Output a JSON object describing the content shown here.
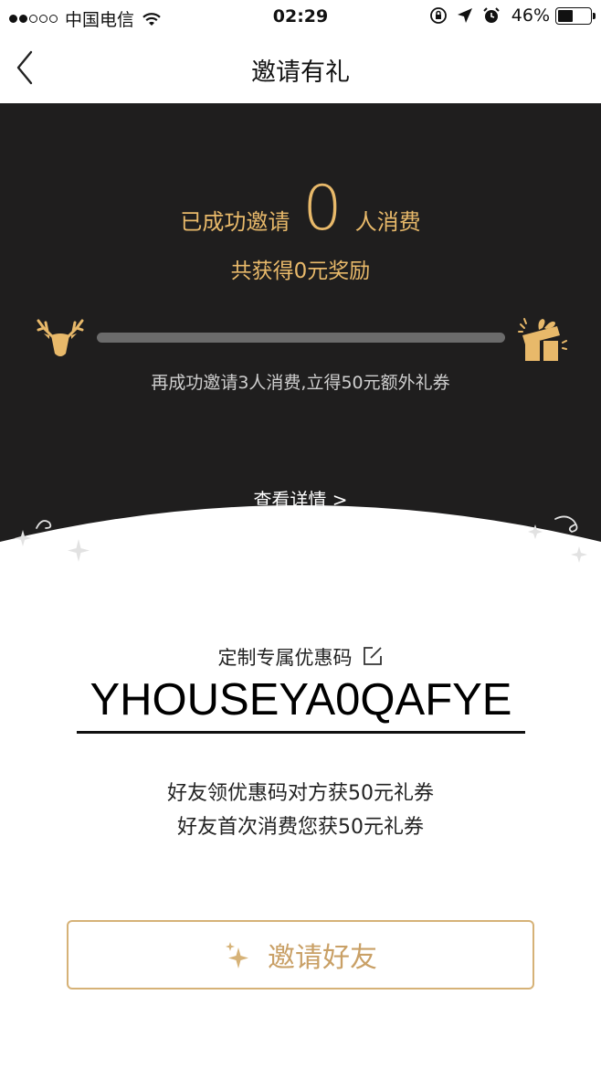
{
  "status_bar": {
    "carrier": "中国电信",
    "time": "02:29",
    "battery_percent": "46%",
    "battery_level": 0.46,
    "signal_bars_filled": 2,
    "signal_bars_total": 5
  },
  "nav": {
    "title": "邀请有礼"
  },
  "hero": {
    "stats_prefix": "已成功邀请",
    "invited_count": "0",
    "stats_suffix": "人消费",
    "reward_text": "共获得0元奖励",
    "progress_fraction": 0,
    "progress_hint": "再成功邀请3人消费,立得50元额外礼券",
    "details_link": "查看详情 >"
  },
  "code_section": {
    "label": "定制专属优惠码",
    "promo_code": "YHOUSEYA0QAFYE",
    "desc_line_1": "好友领优惠码对方获50元礼券",
    "desc_line_2": "好友首次消费您获50元礼券"
  },
  "invite_button": {
    "label": "邀请好友"
  },
  "colors": {
    "accent_gold": "#e8b96a",
    "hero_bg": "#1f1e1e",
    "button_text": "#c9a066"
  }
}
